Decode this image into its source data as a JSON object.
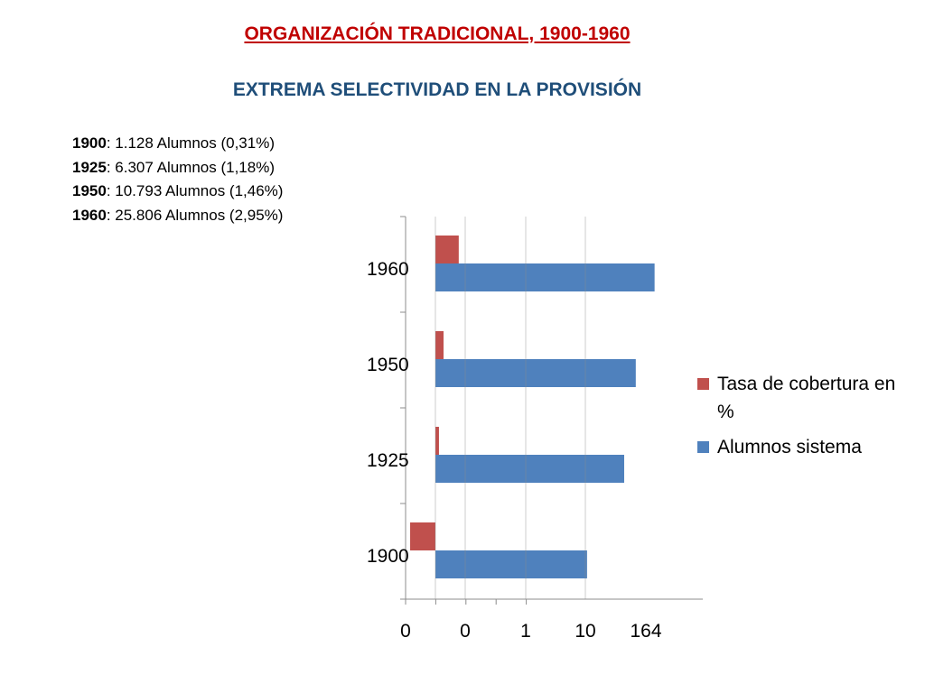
{
  "header": {
    "title": "ORGANIZACIÓN  TRADICIONAL, 1900-1960",
    "subtitle": "EXTREMA SELECTIVIDAD EN LA PROVISIÓN"
  },
  "stats": [
    {
      "year": "1900",
      "text": ": 1.128 Alumnos (0,31%)"
    },
    {
      "year": "1925",
      "text": ": 6.307 Alumnos (1,18%)"
    },
    {
      "year": "1950",
      "text": ": 10.793 Alumnos (1,46%)"
    },
    {
      "year": "1960",
      "text": ": 25.806 Alumnos (2,95%)"
    }
  ],
  "chart_data": {
    "type": "bar",
    "orientation": "horizontal",
    "categories": [
      "1900",
      "1925",
      "1950",
      "1960"
    ],
    "x_scale": "log",
    "x_tick_labels": [
      "0",
      "0",
      "1",
      "10",
      "164"
    ],
    "series": [
      {
        "name": "Tasa de cobertura en %",
        "color": "#c0504d",
        "values": [
          0.31,
          1.18,
          1.46,
          2.95
        ]
      },
      {
        "name": "Alumnos sistema",
        "color": "#4f81bd",
        "values": [
          1128,
          6307,
          10793,
          25806
        ]
      }
    ],
    "legend": "right",
    "grid": false
  }
}
